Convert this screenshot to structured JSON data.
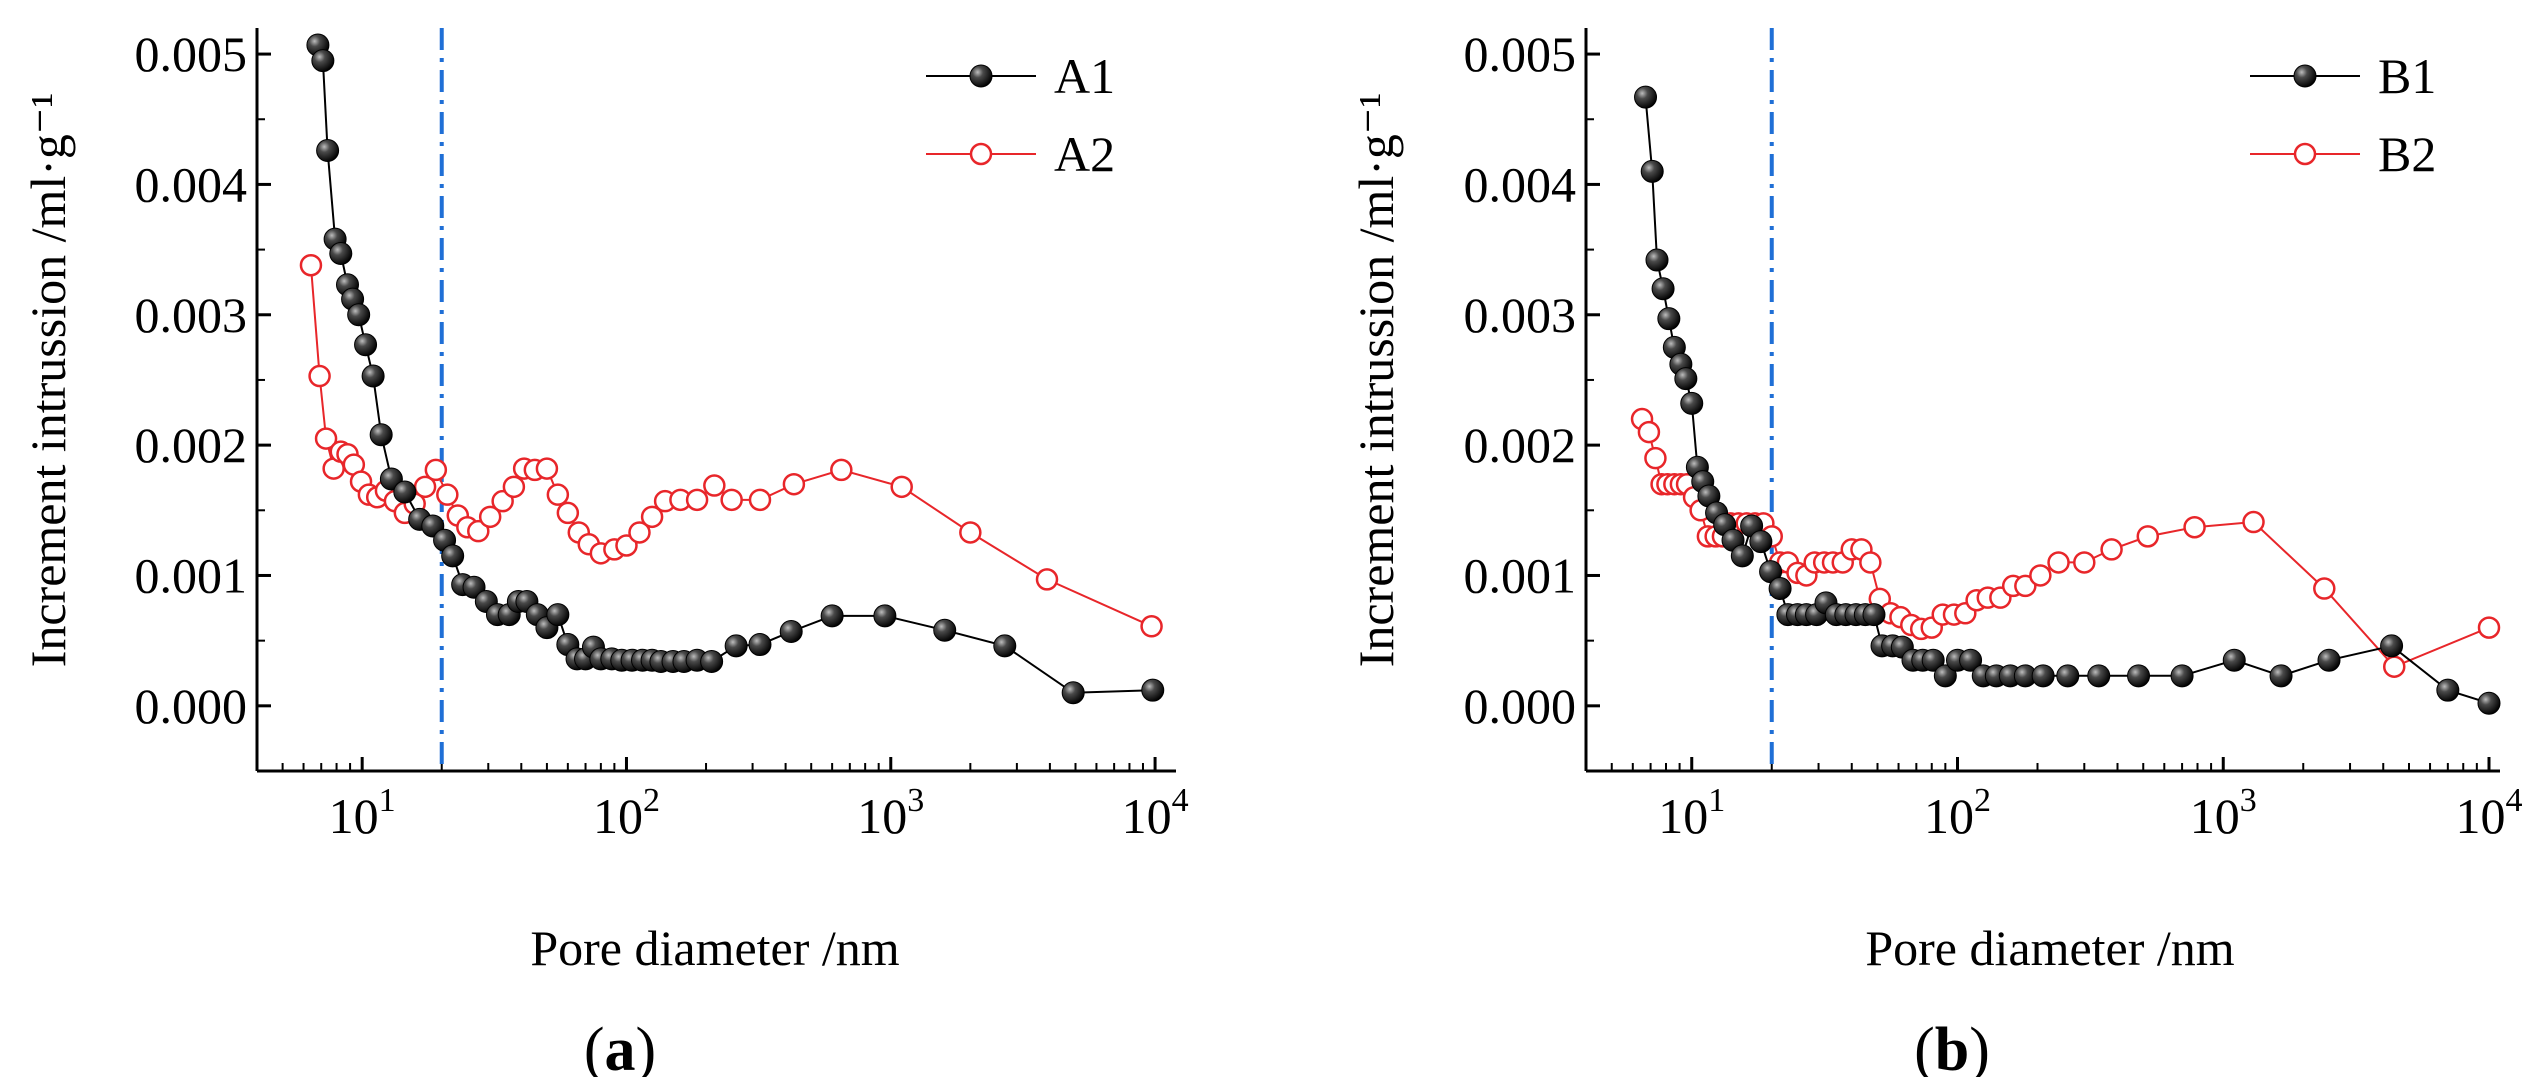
{
  "chart_data": [
    {
      "panel_label": "(a)",
      "panel_letter": "a",
      "type": "scatter",
      "x_scale": "log",
      "xlabel": "Pore diameter /nm",
      "ylabel": "Increment intrussion /ml·g⁻¹",
      "xlim": [
        4,
        12000
      ],
      "ylim": [
        -0.0005,
        0.0052
      ],
      "x_ticks": [
        10,
        100,
        1000,
        10000
      ],
      "x_tick_labels": [
        {
          "base": "10",
          "exp": "1"
        },
        {
          "base": "10",
          "exp": "2"
        },
        {
          "base": "10",
          "exp": "3"
        },
        {
          "base": "10",
          "exp": "4"
        }
      ],
      "y_ticks": [
        0,
        0.001,
        0.002,
        0.003,
        0.004,
        0.005
      ],
      "y_tick_labels": [
        "0.000",
        "0.001",
        "0.002",
        "0.003",
        "0.004",
        "0.005"
      ],
      "vline_x": 20,
      "legend_position": "top-right",
      "series": [
        {
          "name": "A1",
          "color": "#000000",
          "marker": "filled-sphere",
          "x": [
            6.8,
            7.1,
            7.4,
            7.9,
            8.3,
            8.8,
            9.2,
            9.7,
            10.3,
            11.0,
            11.8,
            12.9,
            14.5,
            16.5,
            18.5,
            20.5,
            22.0,
            24.0,
            26.5,
            29.5,
            32.5,
            36.0,
            39.0,
            42.0,
            46.0,
            50.0,
            55.0,
            60.0,
            65.0,
            70.0,
            75.0,
            80.0,
            88.0,
            96.0,
            105.0,
            115.0,
            125.0,
            135.0,
            150.0,
            165.0,
            185.0,
            210.0,
            260.0,
            320.0,
            420.0,
            600.0,
            950.0,
            1600.0,
            2700.0,
            4900.0,
            9800.0
          ],
          "y": [
            0.00507,
            0.00495,
            0.00426,
            0.00358,
            0.00347,
            0.00323,
            0.00312,
            0.003,
            0.00277,
            0.00253,
            0.00208,
            0.00174,
            0.00164,
            0.00143,
            0.00138,
            0.00127,
            0.00115,
            0.00093,
            0.00091,
            0.0008,
            0.0007,
            0.0007,
            0.0008,
            0.0008,
            0.0007,
            0.0006,
            0.0007,
            0.00047,
            0.00036,
            0.00036,
            0.00045,
            0.00036,
            0.00036,
            0.00035,
            0.00035,
            0.00035,
            0.00035,
            0.00034,
            0.00034,
            0.00034,
            0.00035,
            0.00034,
            0.00046,
            0.00047,
            0.00057,
            0.00069,
            0.00069,
            0.00058,
            0.00046,
            0.0001,
            0.00012
          ]
        },
        {
          "name": "A2",
          "color": "#e8262a",
          "marker": "open-circle",
          "x": [
            6.4,
            6.9,
            7.3,
            7.8,
            8.3,
            8.8,
            9.3,
            9.9,
            10.6,
            11.4,
            12.3,
            13.3,
            14.5,
            15.8,
            17.3,
            19.0,
            21.0,
            23.0,
            25.0,
            27.5,
            30.5,
            34.0,
            37.5,
            41.0,
            45.0,
            50.0,
            55.0,
            60.0,
            66.0,
            72.0,
            80.0,
            90.0,
            100.0,
            112.0,
            125.0,
            140.0,
            160.0,
            185.0,
            215.0,
            250.0,
            320.0,
            430.0,
            650.0,
            1100.0,
            2000.0,
            3900.0,
            9700.0
          ],
          "y": [
            0.00338,
            0.00253,
            0.00205,
            0.00182,
            0.00195,
            0.00193,
            0.00185,
            0.00172,
            0.00162,
            0.0016,
            0.00165,
            0.00157,
            0.00148,
            0.00155,
            0.00168,
            0.00181,
            0.00162,
            0.00146,
            0.00137,
            0.00134,
            0.00145,
            0.00157,
            0.00168,
            0.00182,
            0.00181,
            0.00182,
            0.00162,
            0.00148,
            0.00133,
            0.00124,
            0.00117,
            0.0012,
            0.00123,
            0.00133,
            0.00145,
            0.00157,
            0.00158,
            0.00158,
            0.00169,
            0.00158,
            0.00158,
            0.0017,
            0.00181,
            0.00168,
            0.00133,
            0.00097,
            0.00061
          ]
        }
      ]
    },
    {
      "panel_label": "(b)",
      "panel_letter": "b",
      "type": "scatter",
      "x_scale": "log",
      "xlabel": "Pore diameter /nm",
      "ylabel": "Increment intrussion /ml·g⁻¹",
      "xlim": [
        4,
        11000
      ],
      "ylim": [
        -0.0005,
        0.0052
      ],
      "x_ticks": [
        10,
        100,
        1000,
        10000
      ],
      "x_tick_labels": [
        {
          "base": "10",
          "exp": "1"
        },
        {
          "base": "10",
          "exp": "2"
        },
        {
          "base": "10",
          "exp": "3"
        },
        {
          "base": "10",
          "exp": "4"
        }
      ],
      "y_ticks": [
        0,
        0.001,
        0.002,
        0.003,
        0.004,
        0.005
      ],
      "y_tick_labels": [
        "0.000",
        "0.001",
        "0.002",
        "0.003",
        "0.004",
        "0.005"
      ],
      "vline_x": 20,
      "legend_position": "top-right",
      "series": [
        {
          "name": "B1",
          "color": "#000000",
          "marker": "filled-sphere",
          "x": [
            6.7,
            7.1,
            7.4,
            7.8,
            8.2,
            8.6,
            9.1,
            9.5,
            10.0,
            10.5,
            11.0,
            11.6,
            12.4,
            13.3,
            14.3,
            15.5,
            16.8,
            18.2,
            19.8,
            21.5,
            23.0,
            25.0,
            27.0,
            29.5,
            32.0,
            35.0,
            38.0,
            41.5,
            45.0,
            48.5,
            52.0,
            57.0,
            62.0,
            68.0,
            74.0,
            81.0,
            90.0,
            100.0,
            112.0,
            125.0,
            140.0,
            158.0,
            180.0,
            210.0,
            260.0,
            340.0,
            480.0,
            700.0,
            1100.0,
            1650.0,
            2500.0,
            4300.0,
            7000.0,
            10000.0
          ],
          "y": [
            0.00467,
            0.0041,
            0.00342,
            0.0032,
            0.00297,
            0.00275,
            0.00262,
            0.00251,
            0.00232,
            0.00183,
            0.00172,
            0.00161,
            0.00148,
            0.00139,
            0.00127,
            0.00115,
            0.00138,
            0.00126,
            0.00103,
            0.0009,
            0.0007,
            0.0007,
            0.0007,
            0.0007,
            0.00079,
            0.0007,
            0.0007,
            0.0007,
            0.0007,
            0.0007,
            0.00046,
            0.00046,
            0.00045,
            0.00035,
            0.00035,
            0.00035,
            0.00023,
            0.00035,
            0.00035,
            0.00023,
            0.00023,
            0.00023,
            0.00023,
            0.00023,
            0.00023,
            0.00023,
            0.00023,
            0.00023,
            0.00035,
            0.00023,
            0.00035,
            0.00046,
            0.00012,
            2e-05
          ]
        },
        {
          "name": "B2",
          "color": "#e8262a",
          "marker": "open-circle",
          "x": [
            6.5,
            6.9,
            7.3,
            7.7,
            8.1,
            8.6,
            9.1,
            9.6,
            10.2,
            10.8,
            11.5,
            12.3,
            13.1,
            14.0,
            15.0,
            16.1,
            17.3,
            18.6,
            20.0,
            21.5,
            23.0,
            25.0,
            27.0,
            29.0,
            31.5,
            34.0,
            37.0,
            40.0,
            43.5,
            47.0,
            51.0,
            56.0,
            61.0,
            67.0,
            73.0,
            80.0,
            88.0,
            97.0,
            107.0,
            118.0,
            130.0,
            145.0,
            162.0,
            180.0,
            205.0,
            240.0,
            300.0,
            380.0,
            520.0,
            780.0,
            1300.0,
            2400.0,
            4400.0,
            10000.0
          ],
          "y": [
            0.0022,
            0.0021,
            0.0019,
            0.0017,
            0.0017,
            0.0017,
            0.0017,
            0.0017,
            0.0016,
            0.0015,
            0.0013,
            0.0013,
            0.0013,
            0.0014,
            0.0014,
            0.0014,
            0.0014,
            0.0014,
            0.0013,
            0.0011,
            0.0011,
            0.00102,
            0.001,
            0.0011,
            0.0011,
            0.0011,
            0.0011,
            0.0012,
            0.0012,
            0.0011,
            0.00082,
            0.00071,
            0.00068,
            0.00062,
            0.00059,
            0.0006,
            0.0007,
            0.0007,
            0.00071,
            0.00081,
            0.00083,
            0.00083,
            0.00092,
            0.00092,
            0.001,
            0.0011,
            0.0011,
            0.0012,
            0.0013,
            0.00137,
            0.00141,
            0.0009,
            0.0003,
            0.0006
          ]
        }
      ]
    }
  ]
}
